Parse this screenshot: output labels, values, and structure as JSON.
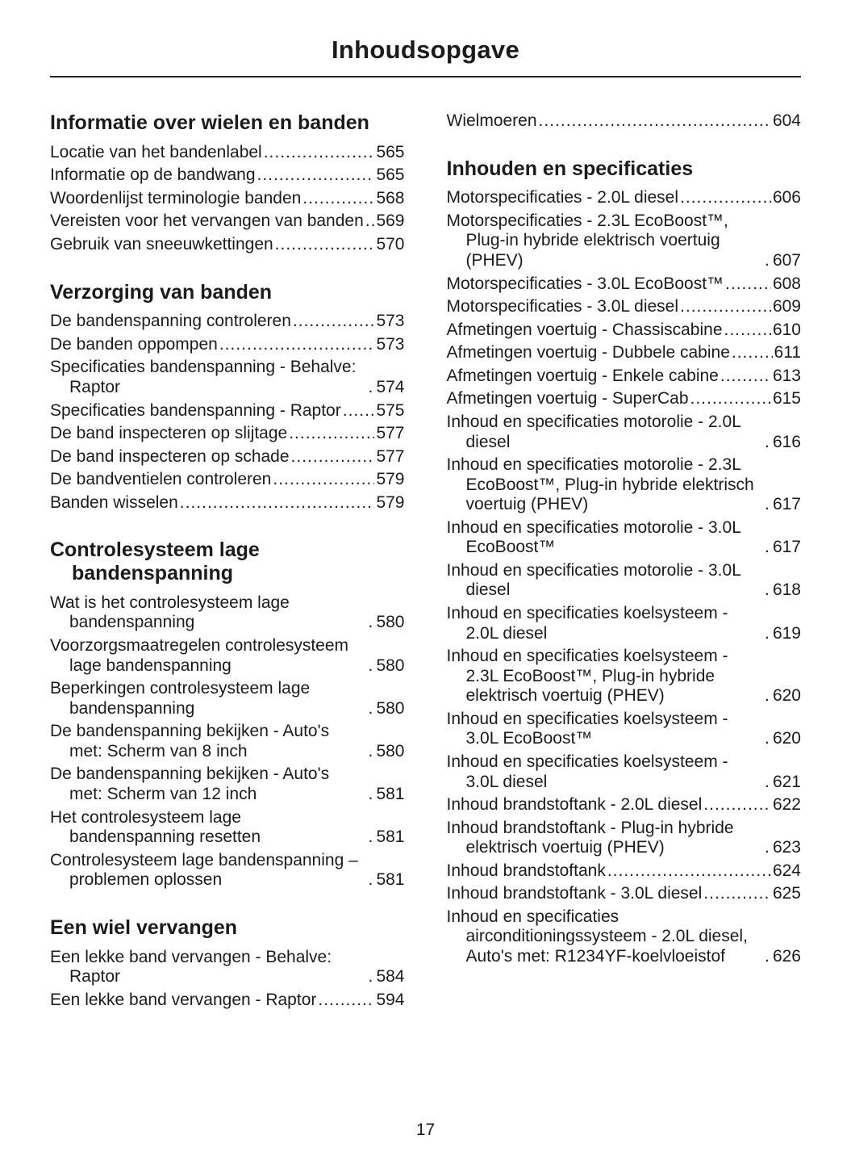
{
  "page": {
    "title": "Inhoudsopgave",
    "number": "17"
  },
  "colors": {
    "text": "#1b1b1d",
    "background": "#ffffff"
  },
  "columns": {
    "left": {
      "sections": [
        {
          "heading": "Informatie over wielen en banden",
          "entries": [
            {
              "label": "Locatie van het bandenlabel",
              "page": "565"
            },
            {
              "label": "Informatie op de bandwang",
              "page": "565"
            },
            {
              "label": "Woordenlijst terminologie banden",
              "page": "568"
            },
            {
              "label": "Vereisten voor het vervangen van banden",
              "page": "569"
            },
            {
              "label": "Gebruik van sneeuwkettingen",
              "page": "570"
            }
          ]
        },
        {
          "heading": "Verzorging van banden",
          "entries": [
            {
              "label": "De bandenspanning controleren",
              "page": "573"
            },
            {
              "label": "De banden oppompen",
              "page": "573"
            },
            {
              "label": "Specificaties bandenspanning - Behalve: Raptor",
              "page": "574"
            },
            {
              "label": "Specificaties bandenspanning - Raptor",
              "page": "575"
            },
            {
              "label": "De band inspecteren op slijtage",
              "page": "577"
            },
            {
              "label": "De band inspecteren op schade",
              "page": "577"
            },
            {
              "label": "De bandventielen controleren",
              "page": "579"
            },
            {
              "label": "Banden wisselen",
              "page": "579"
            }
          ]
        },
        {
          "heading": "Controlesysteem lage bandenspanning",
          "entries": [
            {
              "label": "Wat is het controlesysteem lage bandenspanning",
              "page": "580"
            },
            {
              "label": "Voorzorgsmaatregelen controlesysteem lage bandenspanning",
              "page": "580"
            },
            {
              "label": "Beperkingen controlesysteem lage bandenspanning",
              "page": "580"
            },
            {
              "label": "De bandenspanning bekijken - Auto's met: Scherm van 8 inch",
              "page": "580"
            },
            {
              "label": "De bandenspanning bekijken - Auto's met: Scherm van 12 inch",
              "page": "581"
            },
            {
              "label": "Het controlesysteem lage bandenspanning resetten",
              "page": "581"
            },
            {
              "label": "Controlesysteem lage bandenspanning – problemen oplossen",
              "page": "581"
            }
          ]
        },
        {
          "heading": "Een wiel vervangen",
          "entries": [
            {
              "label": "Een lekke band vervangen - Behalve: Raptor",
              "page": "584"
            },
            {
              "label": "Een lekke band vervangen - Raptor",
              "page": "594"
            }
          ]
        }
      ]
    },
    "right": {
      "sections": [
        {
          "heading": "",
          "entries": [
            {
              "label": "Wielmoeren",
              "page": "604"
            }
          ]
        },
        {
          "heading": "Inhouden en specificaties",
          "entries": [
            {
              "label": "Motorspecificaties - 2.0L diesel",
              "page": "606"
            },
            {
              "label": "Motorspecificaties - 2.3L EcoBoost™, Plug-in hybride elektrisch voertuig (PHEV)",
              "page": "607"
            },
            {
              "label": "Motorspecificaties - 3.0L EcoBoost™",
              "page": "608"
            },
            {
              "label": "Motorspecificaties - 3.0L diesel",
              "page": "609"
            },
            {
              "label": "Afmetingen voertuig - Chassiscabine",
              "page": "610"
            },
            {
              "label": "Afmetingen voertuig - Dubbele cabine",
              "page": "611"
            },
            {
              "label": "Afmetingen voertuig - Enkele cabine",
              "page": "613"
            },
            {
              "label": "Afmetingen voertuig - SuperCab",
              "page": "615"
            },
            {
              "label": "Inhoud en specificaties motorolie - 2.0L diesel",
              "page": "616"
            },
            {
              "label": "Inhoud en specificaties motorolie - 2.3L EcoBoost™, Plug-in hybride elektrisch voertuig (PHEV)",
              "page": "617"
            },
            {
              "label": "Inhoud en specificaties motorolie - 3.0L EcoBoost™",
              "page": "617"
            },
            {
              "label": "Inhoud en specificaties motorolie - 3.0L diesel",
              "page": "618"
            },
            {
              "label": "Inhoud en specificaties koelsysteem - 2.0L diesel",
              "page": "619"
            },
            {
              "label": "Inhoud en specificaties koelsysteem - 2.3L EcoBoost™, Plug-in hybride elektrisch voertuig (PHEV)",
              "page": "620"
            },
            {
              "label": "Inhoud en specificaties koelsysteem - 3.0L EcoBoost™",
              "page": "620"
            },
            {
              "label": "Inhoud en specificaties koelsysteem - 3.0L diesel",
              "page": "621"
            },
            {
              "label": "Inhoud brandstoftank - 2.0L diesel",
              "page": "622"
            },
            {
              "label": "Inhoud brandstoftank - Plug-in hybride elektrisch voertuig (PHEV)",
              "page": "623"
            },
            {
              "label": "Inhoud brandstoftank",
              "page": "624"
            },
            {
              "label": "Inhoud brandstoftank - 3.0L diesel",
              "page": "625"
            },
            {
              "label": "Inhoud en specificaties airconditioningssysteem - 2.0L diesel, Auto's met: R1234YF-koelvloeistof",
              "page": "626"
            }
          ]
        }
      ]
    }
  }
}
